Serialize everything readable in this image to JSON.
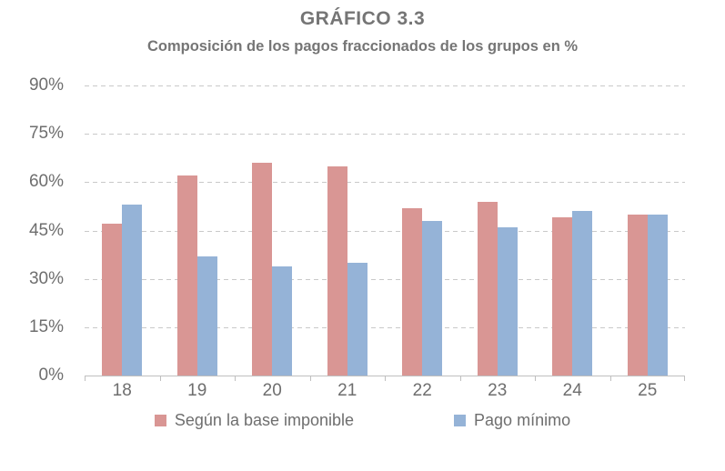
{
  "chart_data": {
    "type": "bar",
    "title": "GRÁFICO 3.3",
    "subtitle": "Composición de los pagos fraccionados de los grupos en %",
    "categories": [
      "18",
      "19",
      "20",
      "21",
      "22",
      "23",
      "24",
      "25"
    ],
    "series": [
      {
        "name": "Según la base imponible",
        "color": "#d99694",
        "values": [
          47,
          62,
          66,
          65,
          52,
          54,
          49,
          50
        ]
      },
      {
        "name": "Pago mínimo",
        "color": "#95b3d7",
        "values": [
          53,
          37,
          34,
          35,
          48,
          46,
          51,
          50
        ]
      }
    ],
    "xlabel": "",
    "ylabel": "",
    "ylim": [
      0,
      90
    ],
    "yticks": [
      0,
      15,
      30,
      45,
      60,
      75,
      90
    ],
    "ytick_suffix": "%",
    "grid": "horizontal-dashed",
    "legend_position": "bottom"
  },
  "style": {
    "bar_color_1": "#d99694",
    "bar_color_2": "#95b3d7",
    "label_color": "#6e6e6e",
    "title_color": "#757575",
    "gridline_color": "#c9c9c9",
    "axis_color": "#bfbfbf",
    "background": "#ffffff"
  }
}
